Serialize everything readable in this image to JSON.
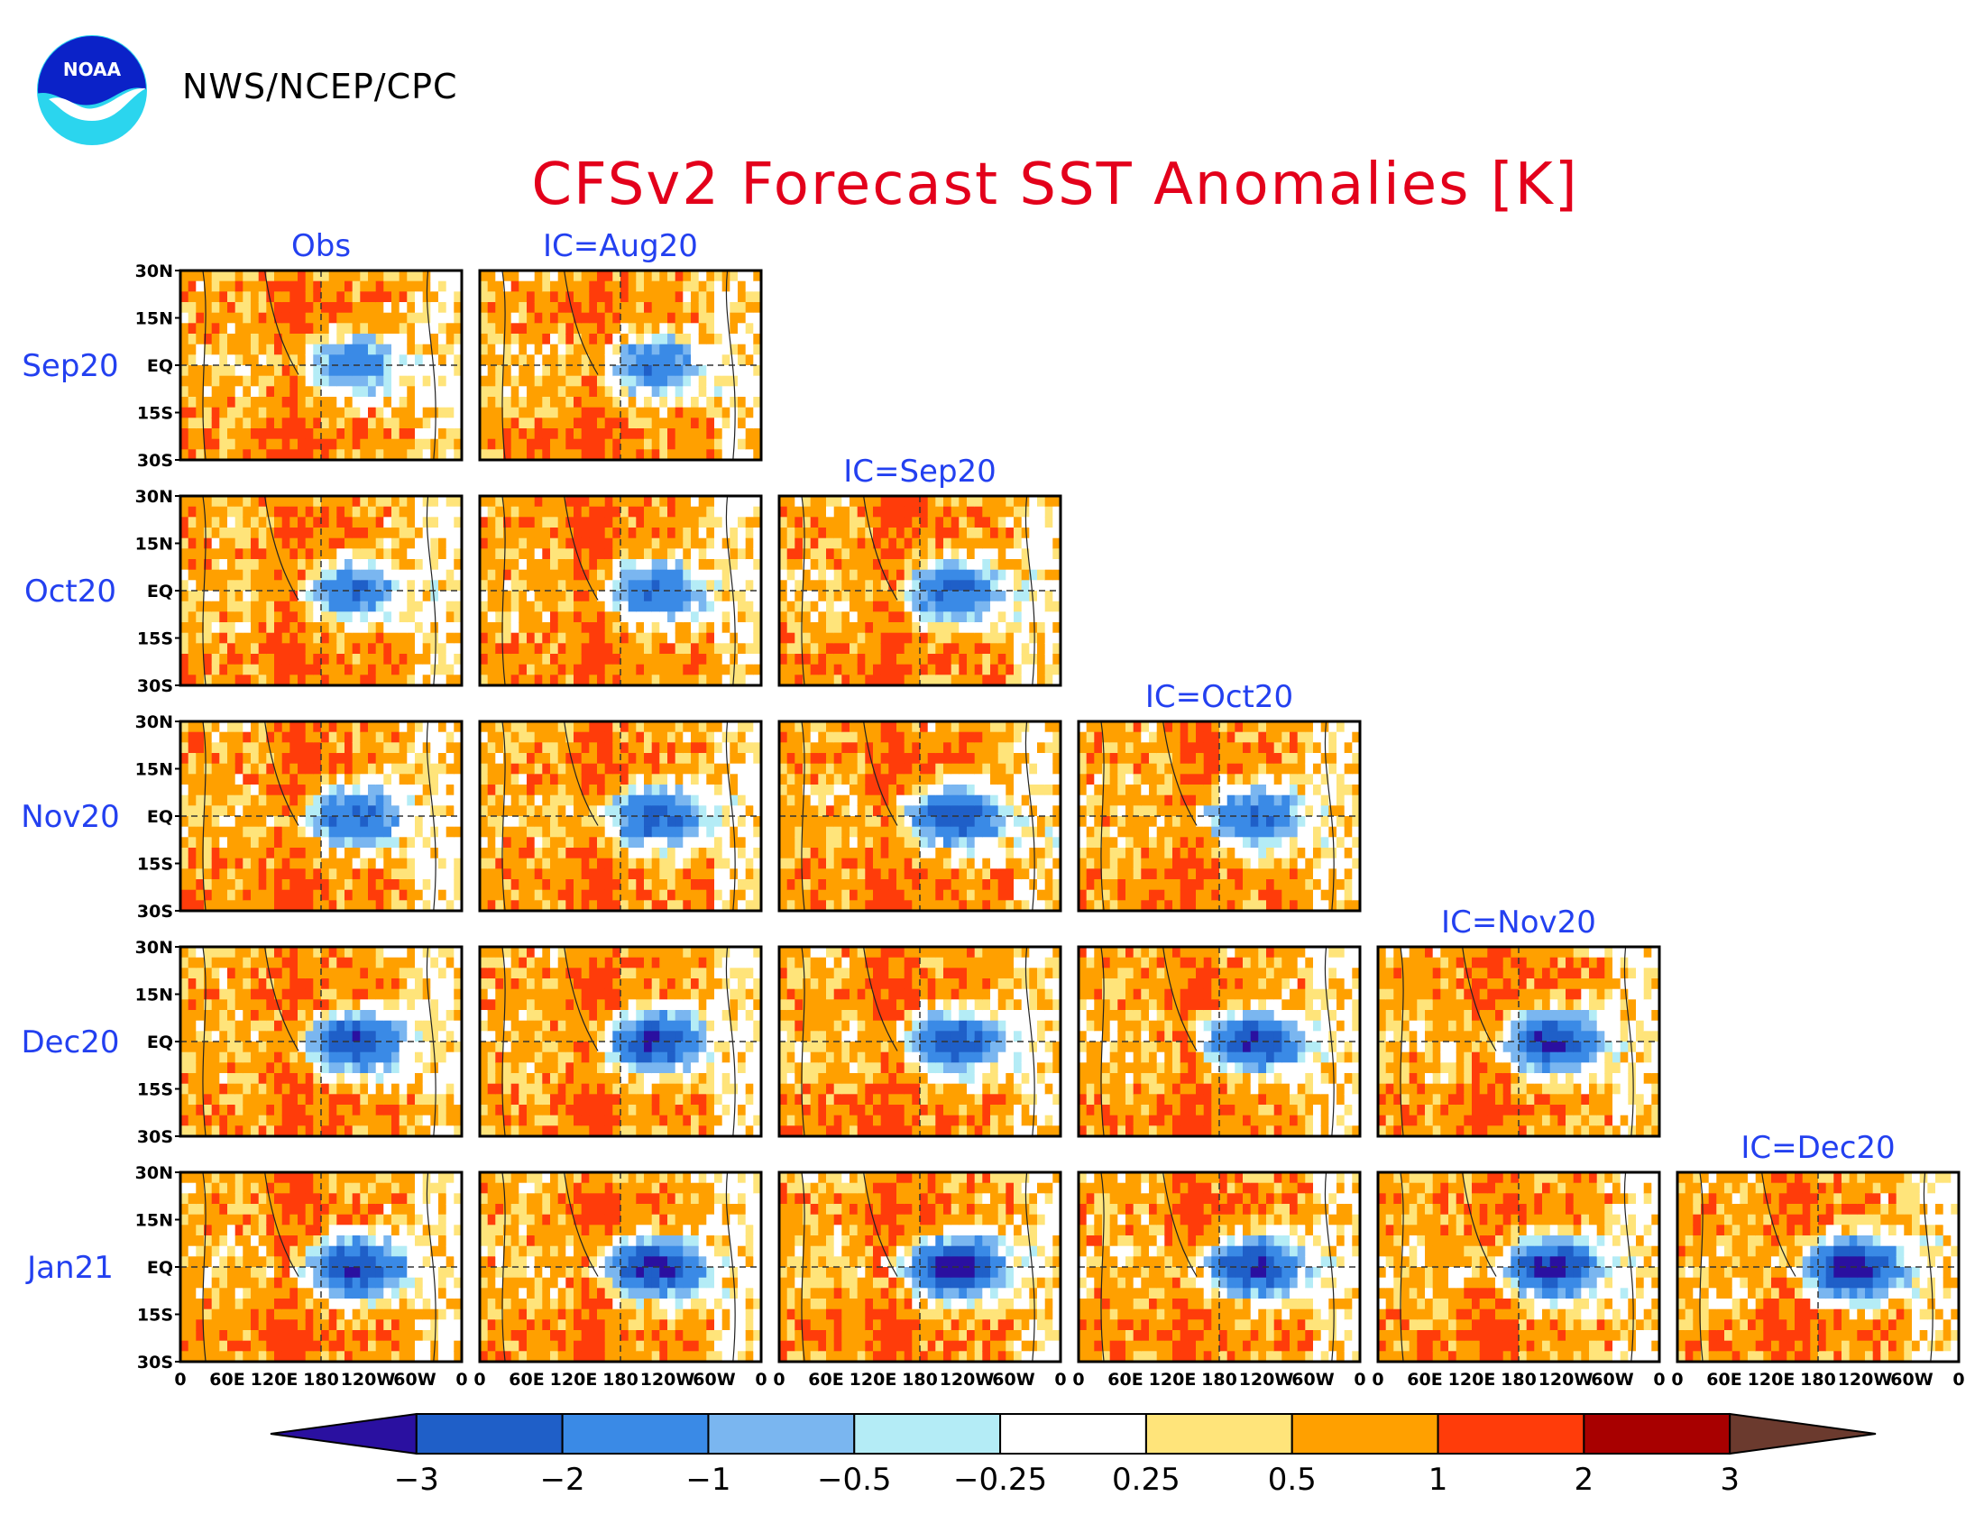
{
  "header": {
    "logo_text": "NOAA",
    "agency": "NWS/NCEP/CPC",
    "title": "CFSv2 Forecast SST Anomalies [K]"
  },
  "colors": {
    "title": "#e3001b",
    "labels": "#2340f0",
    "panel_border": "#000000"
  },
  "chart_data": {
    "type": "heatmap",
    "title": "CFSv2 Forecast SST Anomalies [K]",
    "units": "K",
    "grid": {
      "column_headers": [
        "Obs",
        "IC=Aug20",
        "IC=Sep20",
        "IC=Oct20",
        "IC=Nov20",
        "IC=Dec20"
      ],
      "row_labels": [
        "Sep20",
        "Oct20",
        "Nov20",
        "Dec20",
        "Jan21"
      ],
      "panels_per_row": [
        2,
        3,
        4,
        5,
        6
      ]
    },
    "y_ticks": [
      "30N",
      "15N",
      "EQ",
      "15S",
      "30S"
    ],
    "x_ticks": [
      "0",
      "60E",
      "120E",
      "180",
      "120W",
      "60W",
      "0"
    ],
    "colorbar": {
      "levels": [
        "-3",
        "-2",
        "-1",
        "-0.5",
        "-0.25",
        "0.25",
        "0.5",
        "1",
        "2",
        "3"
      ],
      "colors": [
        "#2a10a0",
        "#1f5fc8",
        "#3a8ae6",
        "#7ab6f0",
        "#b4ecf6",
        "#ffffff",
        "#ffe47a",
        "#ffa000",
        "#ff3c0a",
        "#a80000",
        "#6b3a2e"
      ]
    }
  }
}
